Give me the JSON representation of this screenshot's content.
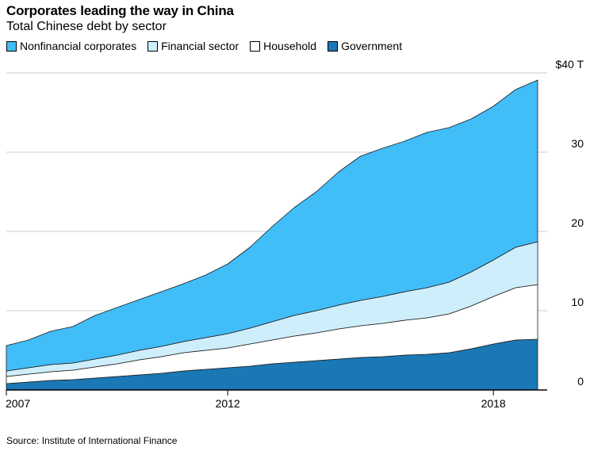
{
  "title": "Corporates leading the way in China",
  "subtitle": "Total Chinese debt by sector",
  "source": "Source: Institute of International Finance",
  "chart_data": {
    "type": "area",
    "stacked": true,
    "x_ticks": [
      "2007",
      "2012",
      "2018"
    ],
    "y_ticks": [
      "0",
      "10",
      "20",
      "30",
      "$40 T"
    ],
    "ylim": [
      0,
      40
    ],
    "y_unit": "T",
    "grid": true,
    "legend_position": "top-left",
    "x": [
      "2007-Q1",
      "2007-Q3",
      "2008-Q1",
      "2008-Q3",
      "2009-Q1",
      "2009-Q3",
      "2010-Q1",
      "2010-Q3",
      "2011-Q1",
      "2011-Q3",
      "2012-Q1",
      "2012-Q3",
      "2013-Q1",
      "2013-Q3",
      "2014-Q1",
      "2014-Q3",
      "2015-Q1",
      "2015-Q3",
      "2016-Q1",
      "2016-Q3",
      "2017-Q1",
      "2017-Q3",
      "2018-Q1",
      "2018-Q3",
      "2019-Q1"
    ],
    "series": [
      {
        "name": "Government",
        "color": "#1a78b4",
        "values": [
          0.8,
          1.0,
          1.2,
          1.3,
          1.5,
          1.7,
          1.9,
          2.1,
          2.4,
          2.6,
          2.8,
          3.0,
          3.3,
          3.5,
          3.7,
          3.9,
          4.1,
          4.2,
          4.4,
          4.5,
          4.7,
          5.2,
          5.8,
          6.3,
          6.4
        ]
      },
      {
        "name": "Household",
        "color": "#ffffff",
        "values": [
          0.9,
          1.0,
          1.1,
          1.2,
          1.4,
          1.6,
          1.9,
          2.1,
          2.3,
          2.4,
          2.5,
          2.8,
          3.0,
          3.3,
          3.5,
          3.8,
          4.0,
          4.2,
          4.4,
          4.6,
          4.9,
          5.4,
          6.0,
          6.6,
          6.9
        ]
      },
      {
        "name": "Financial sector",
        "color": "#cfeefc",
        "values": [
          0.7,
          0.8,
          0.9,
          0.9,
          1.0,
          1.1,
          1.2,
          1.3,
          1.4,
          1.6,
          1.8,
          2.0,
          2.3,
          2.6,
          2.8,
          3.0,
          3.2,
          3.4,
          3.6,
          3.8,
          4.0,
          4.3,
          4.6,
          5.1,
          5.4
        ]
      },
      {
        "name": "Nonfinancial corporates",
        "color": "#41bdf8",
        "values": [
          3.2,
          3.5,
          4.2,
          4.6,
          5.5,
          6.0,
          6.4,
          6.9,
          7.3,
          7.9,
          8.8,
          10.2,
          12.0,
          13.6,
          15.0,
          16.8,
          18.2,
          18.7,
          19.0,
          19.6,
          19.5,
          19.3,
          19.4,
          19.9,
          20.4
        ]
      }
    ]
  },
  "colors": {
    "nonfinancial": "#41bdf8",
    "financial": "#cfeefc",
    "household": "#ffffff",
    "government": "#1a78b4",
    "gridline": "#cccccc"
  }
}
